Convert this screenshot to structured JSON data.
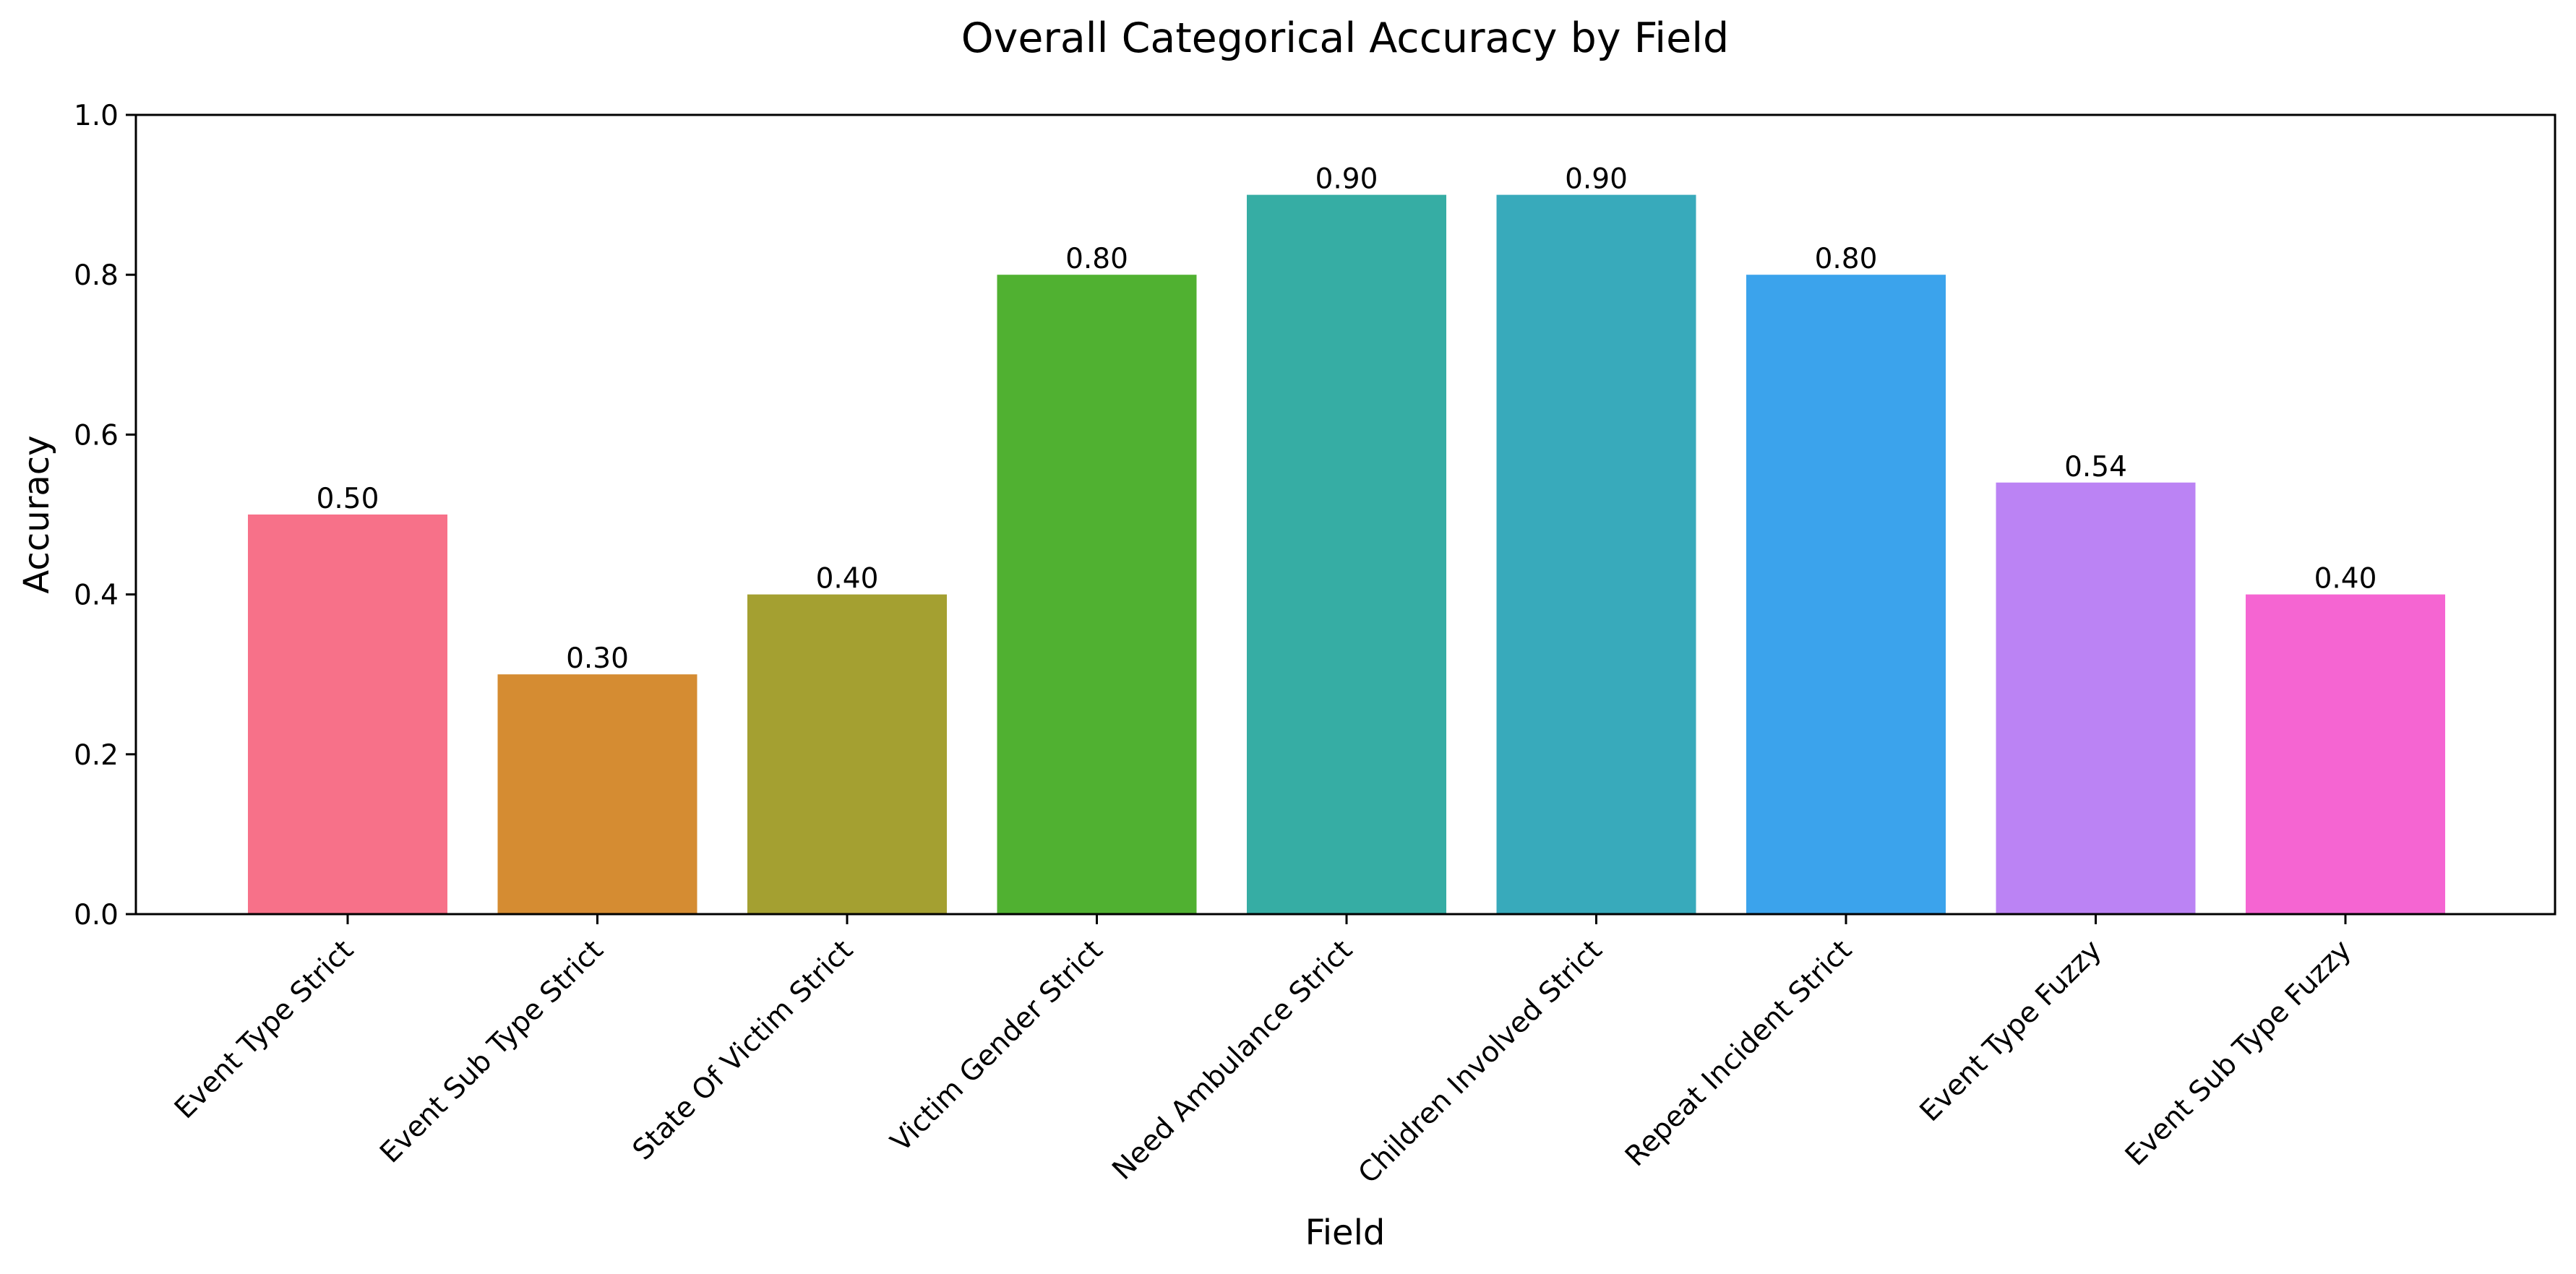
{
  "chart_data": {
    "type": "bar",
    "title": "Overall Categorical Accuracy by Field",
    "xlabel": "Field",
    "ylabel": "Accuracy",
    "ylim": [
      0,
      1.0
    ],
    "yticks": [
      "0.0",
      "0.2",
      "0.4",
      "0.6",
      "0.8",
      "1.0"
    ],
    "grid": false,
    "legend": "none",
    "categories": [
      "Event Type Strict",
      "Event Sub Type Strict",
      "State Of Victim Strict",
      "Victim Gender Strict",
      "Need Ambulance Strict",
      "Children Involved Strict",
      "Repeat Incident Strict",
      "Event Type Fuzzy",
      "Event Sub Type Fuzzy"
    ],
    "values": [
      0.5,
      0.3,
      0.4,
      0.8,
      0.9,
      0.9,
      0.8,
      0.54,
      0.4
    ],
    "value_labels": [
      "0.50",
      "0.30",
      "0.40",
      "0.80",
      "0.90",
      "0.90",
      "0.80",
      "0.54",
      "0.40"
    ],
    "colors": [
      "#f77189",
      "#d58c32",
      "#a4a031",
      "#50b131",
      "#36ada4",
      "#38aabb",
      "#3ba3ec",
      "#bb83f4",
      "#f565d2"
    ]
  }
}
